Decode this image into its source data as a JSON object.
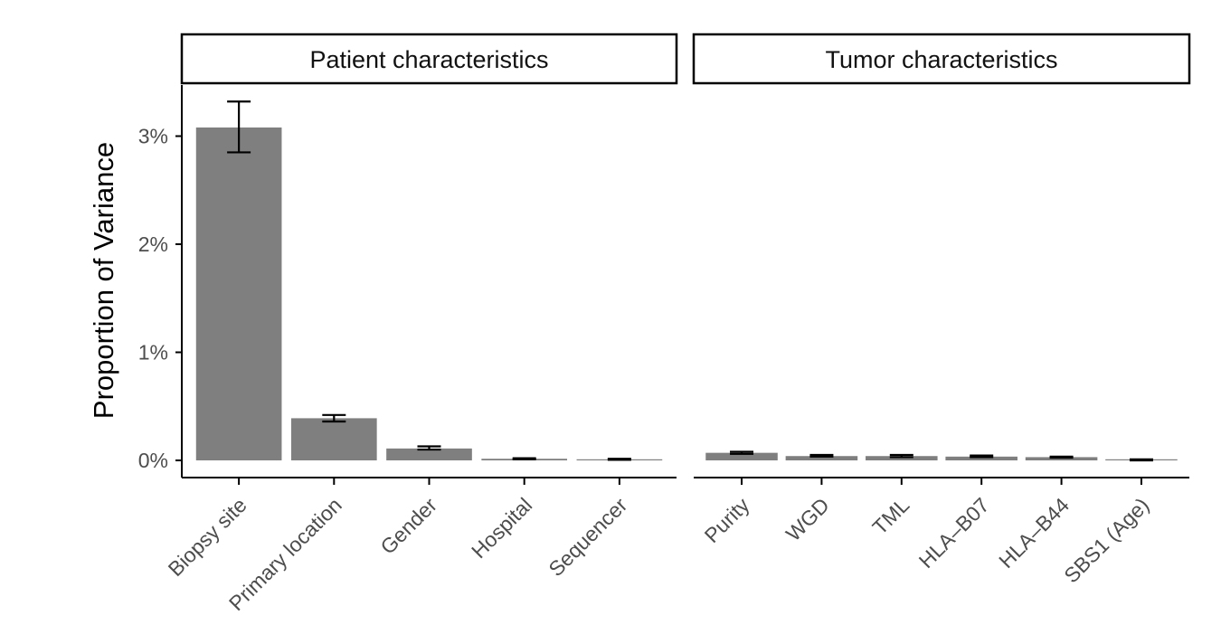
{
  "chart_data": {
    "type": "bar",
    "ylabel": "Proportion of Variance",
    "yticks": [
      "0%",
      "1%",
      "2%",
      "3%"
    ],
    "ylim": [
      -0.15,
      3.48
    ],
    "unit": "%",
    "colors": {
      "bar": "#7f7f7f",
      "errorbar": "#000000",
      "axis": "#000000"
    },
    "panels": [
      {
        "title": "Patient characteristics",
        "categories": [
          "Biopsy site",
          "Primary location",
          "Gender",
          "Hospital",
          "Sequencer"
        ],
        "values": [
          3.08,
          0.39,
          0.11,
          0.015,
          0.01
        ],
        "error_low": [
          2.85,
          0.36,
          0.1,
          0.01,
          0.005
        ],
        "error_high": [
          3.32,
          0.42,
          0.13,
          0.02,
          0.015
        ]
      },
      {
        "title": "Tumor characteristics",
        "categories": [
          "Purity",
          "WGD",
          "TML",
          "HLA–B07",
          "HLA–B44",
          "SBS1 (Age)"
        ],
        "values": [
          0.07,
          0.04,
          0.04,
          0.035,
          0.03,
          0.005
        ],
        "error_low": [
          0.06,
          0.035,
          0.03,
          0.03,
          0.025,
          0.0
        ],
        "error_high": [
          0.08,
          0.05,
          0.05,
          0.045,
          0.035,
          0.01
        ]
      }
    ]
  }
}
